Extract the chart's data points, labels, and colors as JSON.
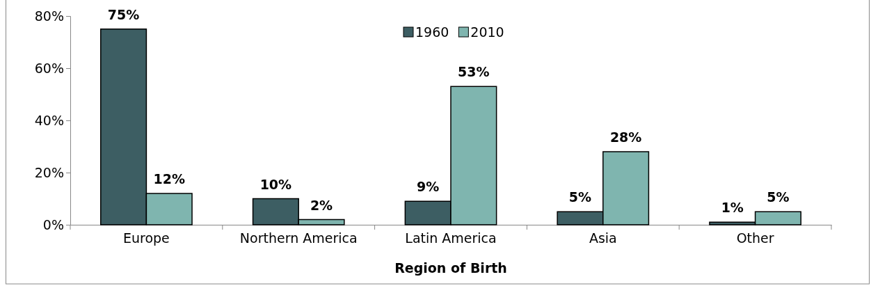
{
  "chart_data": {
    "type": "bar",
    "xlabel": "Region of Birth",
    "categories": [
      "Europe",
      "Northern America",
      "Latin America",
      "Asia",
      "Other"
    ],
    "series": [
      {
        "name": "1960",
        "color": "#3d5e63",
        "values": [
          75,
          10,
          9,
          5,
          1
        ]
      },
      {
        "name": "2010",
        "color": "#7fb5af",
        "values": [
          12,
          2,
          53,
          28,
          5
        ]
      }
    ],
    "ylim": [
      0,
      80
    ],
    "yticks": [
      {
        "value": 0,
        "label": "0%"
      },
      {
        "value": 20,
        "label": "20%"
      },
      {
        "value": 40,
        "label": "40%"
      },
      {
        "value": 60,
        "label": "60%"
      },
      {
        "value": 80,
        "label": "80%"
      }
    ],
    "value_labels": [
      [
        "75%",
        "10%",
        "9%",
        "5%",
        "1%"
      ],
      [
        "12%",
        "2%",
        "53%",
        "28%",
        "5%"
      ]
    ],
    "legend": "top",
    "grid": false
  }
}
